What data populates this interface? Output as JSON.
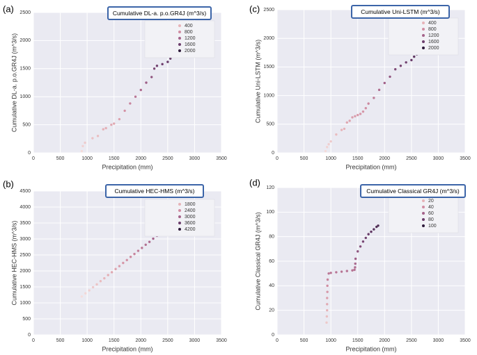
{
  "chart_data": [
    {
      "type": "scatter",
      "panel_label": "(a)",
      "title": "Cumulative DL-a. p.o.GR4J  (m^3/s)",
      "xlabel": "Precipitation (mm)",
      "ylabel": "Cumulative DL-a. p.o.GR4J  (m^3/s)",
      "x": [
        900,
        920,
        960,
        1100,
        1200,
        1300,
        1350,
        1450,
        1500,
        1600,
        1700,
        1800,
        1900,
        2000,
        2100,
        2200,
        2250,
        2300,
        2400,
        2500,
        2550,
        2600,
        2700
      ],
      "values": [
        30,
        120,
        180,
        260,
        300,
        420,
        440,
        500,
        520,
        600,
        750,
        880,
        1000,
        1120,
        1250,
        1350,
        1500,
        1550,
        1580,
        1620,
        1680,
        1720,
        1760
      ],
      "xlim": [
        0,
        3500
      ],
      "ylim": [
        0,
        2500
      ],
      "xticks": [
        0,
        500,
        1000,
        1500,
        2000,
        2500,
        3000,
        3500
      ],
      "yticks": [
        0,
        500,
        1000,
        1500,
        2000,
        2500
      ],
      "grid": true,
      "hue_legend": [
        {
          "value": 400,
          "color": "#e6b3b8"
        },
        {
          "value": 800,
          "color": "#d18da2"
        },
        {
          "value": 1200,
          "color": "#a5638a"
        },
        {
          "value": 1600,
          "color": "#6c3e6c"
        },
        {
          "value": 2000,
          "color": "#2e1a3a"
        }
      ]
    },
    {
      "type": "scatter",
      "panel_label": "(b)",
      "title": "Cumulative HEC-HMS  (m^3/s)",
      "xlabel": "Precipitation (mm)",
      "ylabel": "Cumulative HEC-HMS  (m^3/s)",
      "x": [
        900,
        970,
        1040,
        1110,
        1180,
        1250,
        1320,
        1390,
        1460,
        1530,
        1600,
        1670,
        1740,
        1810,
        1880,
        1950,
        2020,
        2090,
        2160,
        2230,
        2300
      ],
      "values": [
        1200,
        1300,
        1390,
        1490,
        1580,
        1680,
        1770,
        1870,
        1960,
        2060,
        2150,
        2250,
        2340,
        2440,
        2530,
        2630,
        2720,
        2820,
        2910,
        3010,
        3100
      ],
      "xlim": [
        0,
        3500
      ],
      "ylim": [
        0,
        4500
      ],
      "xticks": [
        0,
        500,
        1000,
        1500,
        2000,
        2500,
        3000,
        3500
      ],
      "yticks": [
        0,
        500,
        1000,
        1500,
        2000,
        2500,
        3000,
        3500,
        4000,
        4500
      ],
      "grid": true,
      "hue_legend": [
        {
          "value": 1800,
          "color": "#e6b3b8"
        },
        {
          "value": 2400,
          "color": "#d18da2"
        },
        {
          "value": 3000,
          "color": "#a5638a"
        },
        {
          "value": 3600,
          "color": "#6c3e6c"
        },
        {
          "value": 4200,
          "color": "#2e1a3a"
        }
      ]
    },
    {
      "type": "scatter",
      "panel_label": "(c)",
      "title": "Cumulative Uni-LSTM  (m^3/s)",
      "xlabel": "Precipitation (mm)",
      "ylabel": "Cumulative Uni-LSTM  (m^3/s)",
      "x": [
        900,
        930,
        960,
        1000,
        1100,
        1200,
        1250,
        1300,
        1350,
        1400,
        1450,
        1500,
        1550,
        1600,
        1650,
        1700,
        1800,
        1900,
        2000,
        2100,
        2200,
        2300,
        2400,
        2500,
        2550,
        2600,
        2650
      ],
      "values": [
        30,
        100,
        150,
        200,
        320,
        400,
        420,
        530,
        560,
        620,
        640,
        660,
        680,
        720,
        780,
        860,
        960,
        1100,
        1220,
        1330,
        1460,
        1520,
        1580,
        1620,
        1680,
        1720,
        1760
      ],
      "xlim": [
        0,
        3500
      ],
      "ylim": [
        0,
        2500
      ],
      "xticks": [
        0,
        500,
        1000,
        1500,
        2000,
        2500,
        3000,
        3500
      ],
      "yticks": [
        0,
        500,
        1000,
        1500,
        2000,
        2500
      ],
      "grid": true,
      "hue_legend": [
        {
          "value": 400,
          "color": "#e6b3b8"
        },
        {
          "value": 800,
          "color": "#d18da2"
        },
        {
          "value": 1200,
          "color": "#a5638a"
        },
        {
          "value": 1600,
          "color": "#6c3e6c"
        },
        {
          "value": 2000,
          "color": "#2e1a3a"
        }
      ]
    },
    {
      "type": "scatter",
      "panel_label": "(d)",
      "title": "Cumulative Classical GR4J (m^3/s)",
      "xlabel": "Precipitation (mm)",
      "ylabel": "Cumulative Classical GR4J  (m^3/s)",
      "x": [
        920,
        925,
        930,
        930,
        930,
        935,
        935,
        940,
        960,
        1000,
        1100,
        1200,
        1300,
        1400,
        1440,
        1450,
        1455,
        1460,
        1500,
        1550,
        1600,
        1650,
        1700,
        1750,
        1800,
        1850,
        1880
      ],
      "values": [
        10,
        15,
        20,
        25,
        30,
        35,
        40,
        45,
        50,
        50.5,
        51,
        51.5,
        52,
        52.5,
        53,
        55,
        58,
        62,
        68,
        72,
        76,
        79,
        82,
        84,
        86,
        88,
        89
      ],
      "xlim": [
        0,
        3500
      ],
      "ylim": [
        0,
        120
      ],
      "xticks": [
        0,
        500,
        1000,
        1500,
        2000,
        2500,
        3000,
        3500
      ],
      "yticks": [
        0,
        20,
        40,
        60,
        80,
        100,
        120
      ],
      "grid": true,
      "hue_legend": [
        {
          "value": 20,
          "color": "#e6b3b8"
        },
        {
          "value": 40,
          "color": "#d18da2"
        },
        {
          "value": 60,
          "color": "#a5638a"
        },
        {
          "value": 80,
          "color": "#6c3e6c"
        },
        {
          "value": 100,
          "color": "#2e1a3a"
        }
      ]
    }
  ]
}
